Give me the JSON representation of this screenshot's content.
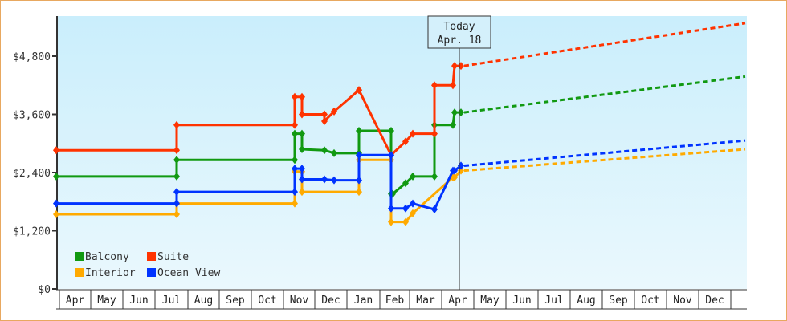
{
  "chart_data": {
    "type": "line",
    "title": "",
    "xlabel": "",
    "ylabel": "",
    "ylim": [
      0,
      5400
    ],
    "yticks": [
      {
        "value": 0,
        "label": "$0"
      },
      {
        "value": 1200,
        "label": "$1,200"
      },
      {
        "value": 2400,
        "label": "$2,400"
      },
      {
        "value": 3600,
        "label": "$3,600"
      },
      {
        "value": 4800,
        "label": "$4,800"
      }
    ],
    "months": [
      "Apr",
      "May",
      "Jun",
      "Jul",
      "Aug",
      "Sep",
      "Oct",
      "Nov",
      "Dec",
      "Jan",
      "Feb",
      "Mar",
      "Apr",
      "May",
      "Jun",
      "Jul",
      "Aug",
      "Sep",
      "Oct",
      "Nov",
      "Dec"
    ],
    "grid": false,
    "legend_position": "lower-left",
    "annotation": {
      "line1": "Today",
      "line2": "Apr. 18"
    },
    "series": [
      {
        "name": "Balcony",
        "color": "#119911",
        "historical": [
          [
            "Apr",
            2320
          ],
          [
            "Jul",
            2320
          ],
          [
            "Jul",
            2660
          ],
          [
            "Nov",
            2660
          ],
          [
            "Nov",
            3200
          ],
          [
            "Nov",
            3200
          ],
          [
            "Nov",
            2880
          ],
          [
            "Dec",
            2860
          ],
          [
            "Dec",
            2800
          ],
          [
            "Jan",
            2800
          ],
          [
            "Jan",
            3260
          ],
          [
            "Feb",
            3260
          ],
          [
            "Feb",
            1960
          ],
          [
            "Feb",
            1960
          ],
          [
            "Feb",
            2180
          ],
          [
            "Mar",
            2320
          ],
          [
            "Mar",
            2320
          ],
          [
            "Mar",
            3380
          ],
          [
            "Mar",
            3380
          ],
          [
            "Apr",
            3640
          ],
          [
            "Apr",
            3640
          ]
        ],
        "forecast_end": 4380
      },
      {
        "name": "Suite",
        "color": "#ff3300",
        "historical": [
          [
            "Apr",
            2860
          ],
          [
            "Jul",
            2860
          ],
          [
            "Jul",
            3380
          ],
          [
            "Nov",
            3380
          ],
          [
            "Nov",
            3960
          ],
          [
            "Nov",
            3960
          ],
          [
            "Nov",
            3600
          ],
          [
            "Dec",
            3600
          ],
          [
            "Dec",
            3460
          ],
          [
            "Dec",
            3660
          ],
          [
            "Jan",
            3660
          ],
          [
            "Jan",
            4100
          ],
          [
            "Feb",
            4100
          ],
          [
            "Feb",
            2760
          ],
          [
            "Feb",
            2760
          ],
          [
            "Feb",
            3040
          ],
          [
            "Mar",
            3200
          ],
          [
            "Mar",
            3200
          ],
          [
            "Mar",
            4200
          ],
          [
            "Mar",
            4200
          ],
          [
            "Apr",
            4600
          ],
          [
            "Apr",
            4600
          ]
        ],
        "forecast_end": 5480
      },
      {
        "name": "Interior",
        "color": "#ffaa00",
        "historical": [
          [
            "Apr",
            1540
          ],
          [
            "Jul",
            1540
          ],
          [
            "Jul",
            1760
          ],
          [
            "Nov",
            1760
          ],
          [
            "Nov",
            2420
          ],
          [
            "Nov",
            2420
          ],
          [
            "Nov",
            2000
          ],
          [
            "Jan",
            2000
          ],
          [
            "Jan",
            2660
          ],
          [
            "Feb",
            2660
          ],
          [
            "Feb",
            1380
          ],
          [
            "Feb",
            1380
          ],
          [
            "Feb",
            1560
          ],
          [
            "Mar",
            2300
          ],
          [
            "Mar",
            2300
          ],
          [
            "Apr",
            2440
          ]
        ],
        "forecast_end": 2880
      },
      {
        "name": "Ocean View",
        "color": "#0033ff",
        "historical": [
          [
            "Apr",
            1760
          ],
          [
            "Jul",
            1760
          ],
          [
            "Jul",
            2000
          ],
          [
            "Nov",
            2000
          ],
          [
            "Nov",
            2480
          ],
          [
            "Nov",
            2480
          ],
          [
            "Nov",
            2260
          ],
          [
            "Dec",
            2260
          ],
          [
            "Dec",
            2240
          ],
          [
            "Jan",
            2240
          ],
          [
            "Jan",
            2760
          ],
          [
            "Feb",
            2760
          ],
          [
            "Feb",
            1660
          ],
          [
            "Feb",
            1660
          ],
          [
            "Feb",
            1760
          ],
          [
            "Mar",
            1640
          ],
          [
            "Mar",
            1640
          ],
          [
            "Mar",
            2440
          ],
          [
            "Mar",
            2440
          ],
          [
            "Apr",
            2540
          ],
          [
            "Apr",
            2540
          ]
        ],
        "forecast_end": 3060
      }
    ]
  },
  "legend": [
    {
      "label": "Balcony",
      "color": "#119911"
    },
    {
      "label": "Suite",
      "color": "#ff3300"
    },
    {
      "label": "Interior",
      "color": "#ffaa00"
    },
    {
      "label": "Ocean View",
      "color": "#0033ff"
    }
  ]
}
